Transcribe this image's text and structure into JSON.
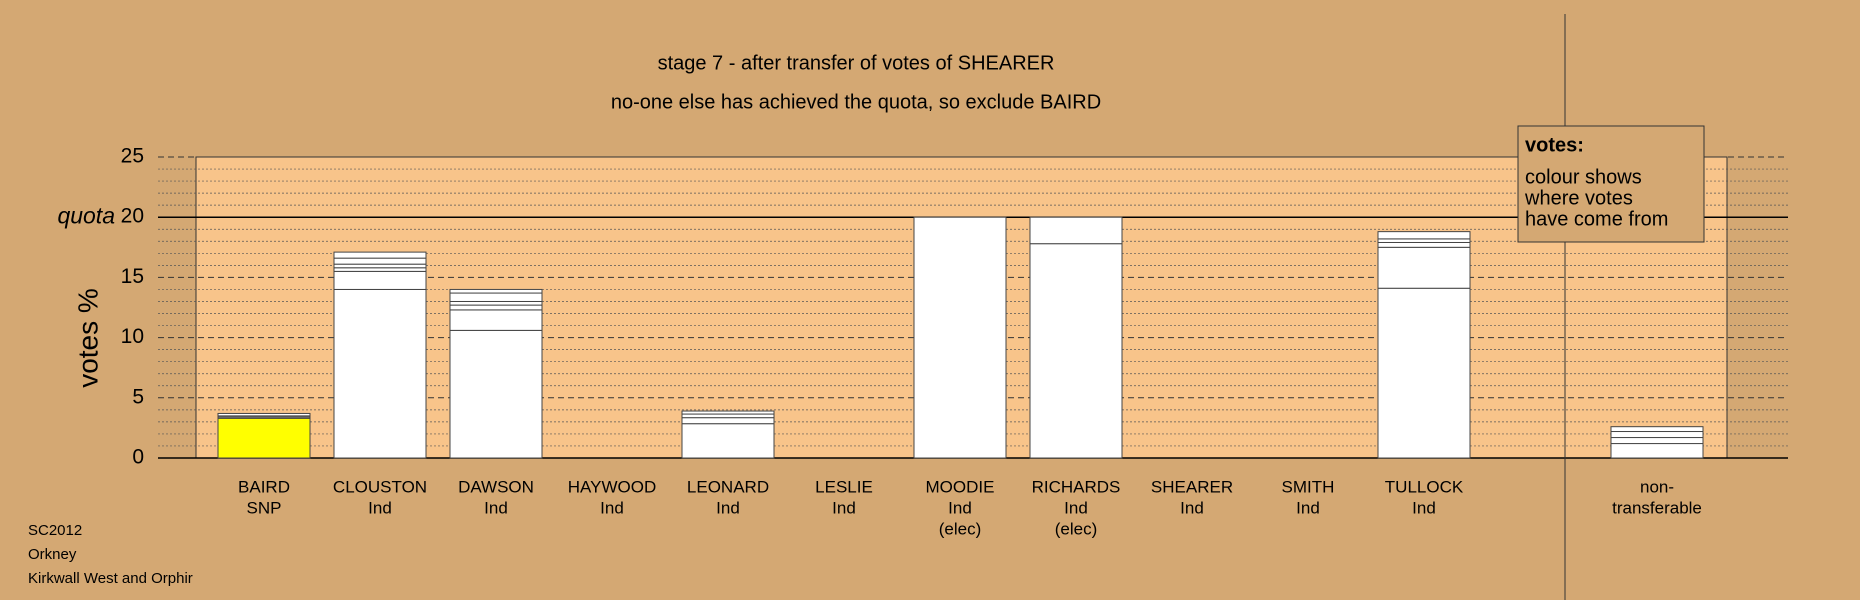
{
  "chart_data": {
    "type": "stacked-bar",
    "title": "stage 7 - after transfer of votes of SHEARER",
    "subtitle": "no-one else has achieved the quota, so exclude BAIRD",
    "y_label": "votes %",
    "categories": [
      [
        "BAIRD",
        "SNP"
      ],
      [
        "CLOUSTON",
        "Ind"
      ],
      [
        "DAWSON",
        "Ind"
      ],
      [
        "HAYWOOD",
        "Ind"
      ],
      [
        "LEONARD",
        "Ind"
      ],
      [
        "LESLIE",
        "Ind"
      ],
      [
        "MOODIE",
        "Ind",
        "(elec)"
      ],
      [
        "RICHARDS",
        "Ind",
        "(elec)"
      ],
      [
        "SHEARER",
        "Ind"
      ],
      [
        "SMITH",
        "Ind"
      ],
      [
        "TULLOCK",
        "Ind"
      ],
      [
        "non-",
        "transferable"
      ]
    ],
    "stacks": [
      [
        3.3,
        0.1,
        0.1,
        0.2
      ],
      [
        14.0,
        1.5,
        0.3,
        0.3,
        0.5,
        0.5
      ],
      [
        10.6,
        1.7,
        0.4,
        0.3,
        0.7,
        0.3
      ],
      [],
      [
        2.85,
        0.5,
        0.3,
        0.25
      ],
      [],
      [
        20
      ],
      [
        17.8,
        2.2
      ],
      [],
      [],
      [
        14.1,
        3.4,
        0.4,
        0.3,
        0.6
      ],
      [
        1.2,
        0.5,
        0.5,
        0.4
      ]
    ],
    "colors": [
      [
        "#ffff00",
        "#ffffff",
        "#ffffff",
        "#ffffff"
      ],
      [
        "#ffffff",
        "#ffffff",
        "#ffffff",
        "#ffffff",
        "#ffffff",
        "#ffffff"
      ],
      [
        "#ffffff",
        "#ffffff",
        "#ffffff",
        "#ffffff",
        "#ffffff",
        "#ffffff"
      ],
      [],
      [
        "#ffffff",
        "#ffffff",
        "#ffffff",
        "#ffffff"
      ],
      [],
      [
        "#ffffff"
      ],
      [
        "#ffffff",
        "#ffffff"
      ],
      [],
      [],
      [
        "#ffffff",
        "#ffffff",
        "#ffffff",
        "#ffffff",
        "#ffffff"
      ],
      [
        "#ffffff",
        "#ffffff",
        "#ffffff",
        "#ffffff"
      ]
    ],
    "ylim": [
      0,
      25
    ],
    "yticks": [
      0,
      5,
      10,
      15,
      20,
      25
    ],
    "minor_yticks": [
      1,
      2,
      3,
      4,
      6,
      7,
      8,
      9,
      11,
      12,
      13,
      14,
      16,
      17,
      18,
      19,
      21,
      22,
      23,
      24
    ],
    "quota": {
      "label": "quota",
      "value": 20
    },
    "legend": {
      "title": "votes:",
      "lines": [
        "colour shows",
        "where votes",
        "have come from"
      ]
    },
    "footer": [
      "SC2012",
      "Orkney",
      "Kirkwall West and Orphir"
    ]
  }
}
